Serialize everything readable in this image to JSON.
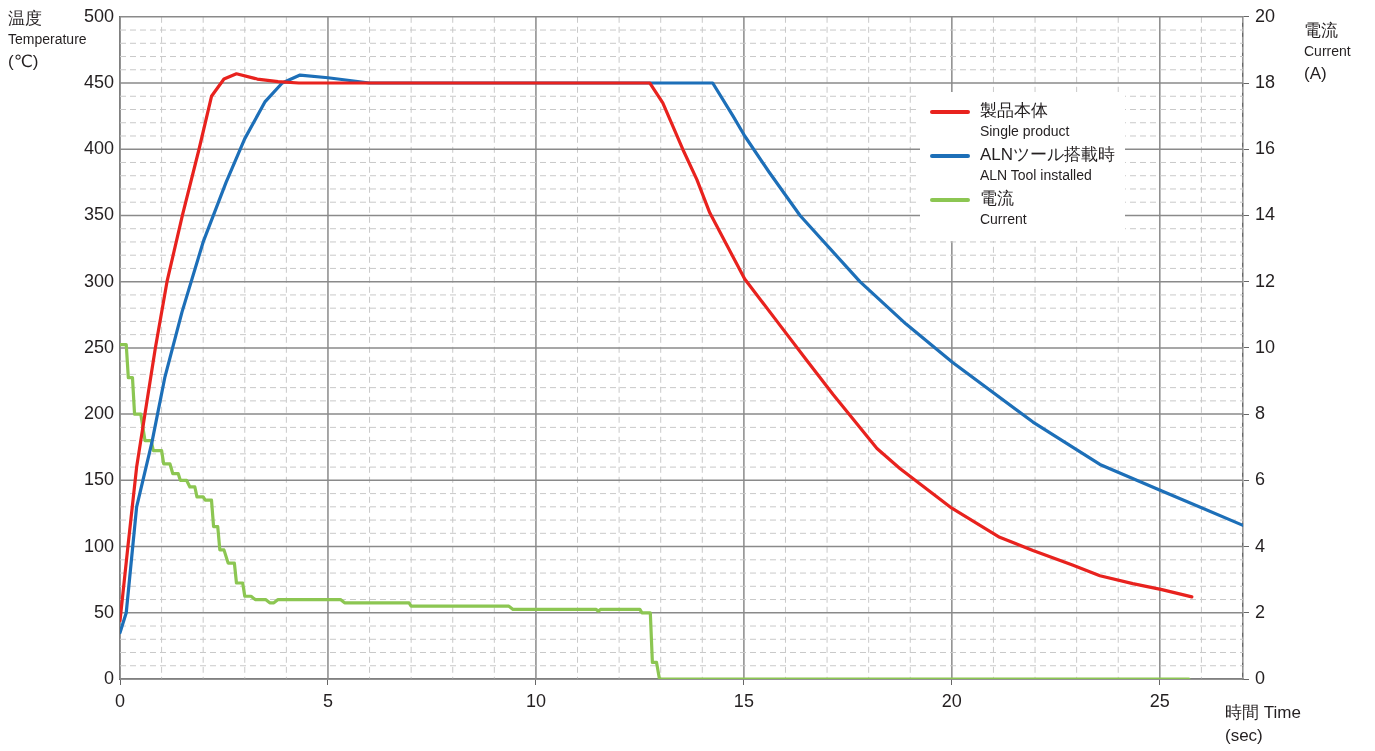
{
  "chart_data": {
    "type": "line",
    "xlabel": "時間 Time\n(sec)",
    "ylabel": "温度\nTemperature\n(℃)",
    "y2label": "電流\nCurrent\n(A)",
    "grid": true,
    "legend": "top right",
    "xlim": [
      0,
      27
    ],
    "xticks": [
      0,
      {
        "value": 1,
        "label": null
      },
      {
        "value": 2,
        "label": null
      },
      {
        "value": 3,
        "label": null
      },
      {
        "value": 4,
        "label": null
      },
      5,
      {
        "value": 6,
        "label": null
      },
      {
        "value": 7,
        "label": null
      },
      {
        "value": 8,
        "label": null
      },
      {
        "value": 9,
        "label": null
      },
      10,
      {
        "value": 11,
        "label": null
      },
      {
        "value": 12,
        "label": null
      },
      {
        "value": 13,
        "label": null
      },
      {
        "value": 14,
        "label": null
      },
      15,
      {
        "value": 16,
        "label": null
      },
      {
        "value": 17,
        "label": null
      },
      {
        "value": 18,
        "label": null
      },
      {
        "value": 19,
        "label": null
      },
      20,
      {
        "value": 21,
        "label": null
      },
      {
        "value": 22,
        "label": null
      },
      {
        "value": 23,
        "label": null
      },
      {
        "value": 24,
        "label": null
      },
      25,
      {
        "value": 26,
        "label": null
      },
      {
        "value": 27,
        "label": null
      }
    ],
    "ylim": [
      0,
      500
    ],
    "yticks": [
      0,
      {
        "value": 10,
        "label": null
      },
      {
        "value": 20,
        "label": null
      },
      {
        "value": 30,
        "label": null
      },
      {
        "value": 40,
        "label": null
      },
      50,
      {
        "value": 60,
        "label": null
      },
      {
        "value": 70,
        "label": null
      },
      {
        "value": 80,
        "label": null
      },
      {
        "value": 90,
        "label": null
      },
      100,
      {
        "value": 110,
        "label": null
      },
      {
        "value": 120,
        "label": null
      },
      {
        "value": 130,
        "label": null
      },
      {
        "value": 140,
        "label": null
      },
      150,
      {
        "value": 160,
        "label": null
      },
      {
        "value": 170,
        "label": null
      },
      {
        "value": 180,
        "label": null
      },
      {
        "value": 190,
        "label": null
      },
      200,
      {
        "value": 210,
        "label": null
      },
      {
        "value": 220,
        "label": null
      },
      {
        "value": 230,
        "label": null
      },
      {
        "value": 240,
        "label": null
      },
      250,
      {
        "value": 260,
        "label": null
      },
      {
        "value": 270,
        "label": null
      },
      {
        "value": 280,
        "label": null
      },
      {
        "value": 290,
        "label": null
      },
      300,
      {
        "value": 310,
        "label": null
      },
      {
        "value": 320,
        "label": null
      },
      {
        "value": 330,
        "label": null
      },
      {
        "value": 340,
        "label": null
      },
      350,
      {
        "value": 360,
        "label": null
      },
      {
        "value": 370,
        "label": null
      },
      {
        "value": 380,
        "label": null
      },
      {
        "value": 390,
        "label": null
      },
      400,
      {
        "value": 410,
        "label": null
      },
      {
        "value": 420,
        "label": null
      },
      {
        "value": 430,
        "label": null
      },
      {
        "value": 440,
        "label": null
      },
      450,
      {
        "value": 460,
        "label": null
      },
      {
        "value": 470,
        "label": null
      },
      {
        "value": 480,
        "label": null
      },
      {
        "value": 490,
        "label": null
      },
      500
    ],
    "y2lim": [
      0,
      20
    ],
    "y2ticks": [
      0,
      2,
      4,
      6,
      8,
      10,
      12,
      14,
      16,
      18,
      20
    ],
    "series": [
      {
        "name": "製品本体\nSingle product",
        "type": "line",
        "color": "#e8221e",
        "x": [
          0,
          0.19,
          0.4,
          0.6,
          0.85,
          1.13,
          1.5,
          1.9,
          2.2,
          2.5,
          2.8,
          3.3,
          3.8,
          4.3,
          12.74,
          13.05,
          13.53,
          13.87,
          14.18,
          15.02,
          15.87,
          16.5,
          17.14,
          18.2,
          18.75,
          20.0,
          21.15,
          21.95,
          22.9,
          23.56,
          24.35,
          25.05,
          25.77
        ],
        "values": [
          44,
          100,
          160,
          200,
          250,
          300,
          350,
          400,
          440,
          453,
          457,
          453,
          451,
          450,
          450,
          435,
          400,
          377,
          352,
          302,
          267,
          241,
          215,
          174,
          159,
          129,
          107,
          97,
          86,
          78,
          72,
          67.5,
          62
        ]
      },
      {
        "name": "ALNツール搭載時\nALN Tool installed",
        "type": "line",
        "color": "#1d6fb8",
        "x": [
          0,
          0.15,
          0.4,
          0.77,
          1.08,
          1.49,
          2.0,
          2.55,
          3.0,
          3.49,
          3.9,
          4.33,
          5.0,
          6.0,
          14.25,
          14.74,
          15.02,
          15.6,
          16.35,
          17.79,
          18.9,
          20.02,
          21.95,
          23.56,
          25.05,
          27.0
        ],
        "values": [
          35,
          50,
          130,
          179,
          228,
          277,
          330,
          375,
          408,
          436,
          450,
          456,
          454,
          450,
          450,
          425,
          410,
          383,
          350,
          300,
          268,
          239,
          194,
          162,
          142,
          116
        ]
      },
      {
        "name": "電流\nCurrent",
        "type": "line",
        "axis": "y2",
        "color": "#8cc652",
        "x": [
          0,
          0.15,
          0.2,
          0.3,
          0.35,
          0.5,
          0.6,
          0.75,
          0.8,
          1.0,
          1.05,
          1.2,
          1.27,
          1.4,
          1.45,
          1.6,
          1.68,
          1.8,
          1.85,
          2.0,
          2.05,
          2.2,
          2.25,
          2.35,
          2.4,
          2.5,
          2.6,
          2.75,
          2.8,
          2.95,
          3.0,
          3.15,
          3.25,
          3.5,
          3.6,
          3.7,
          3.8,
          5.3,
          5.4,
          6.95,
          7.0,
          9.35,
          9.45,
          11.45,
          11.5,
          11.55,
          12.5,
          12.55,
          12.75,
          12.8,
          12.9,
          12.97,
          25.7
        ],
        "values": [
          10.1,
          10.1,
          9.1,
          9.1,
          8.0,
          8.0,
          7.2,
          7.2,
          6.9,
          6.9,
          6.5,
          6.5,
          6.2,
          6.2,
          6.0,
          6.0,
          5.8,
          5.8,
          5.5,
          5.5,
          5.4,
          5.4,
          4.6,
          4.6,
          3.9,
          3.9,
          3.5,
          3.5,
          2.9,
          2.9,
          2.5,
          2.5,
          2.4,
          2.4,
          2.3,
          2.3,
          2.4,
          2.4,
          2.3,
          2.3,
          2.2,
          2.2,
          2.1,
          2.1,
          2.05,
          2.1,
          2.1,
          2.0,
          2.0,
          0.5,
          0.5,
          0,
          0
        ]
      }
    ]
  }
}
